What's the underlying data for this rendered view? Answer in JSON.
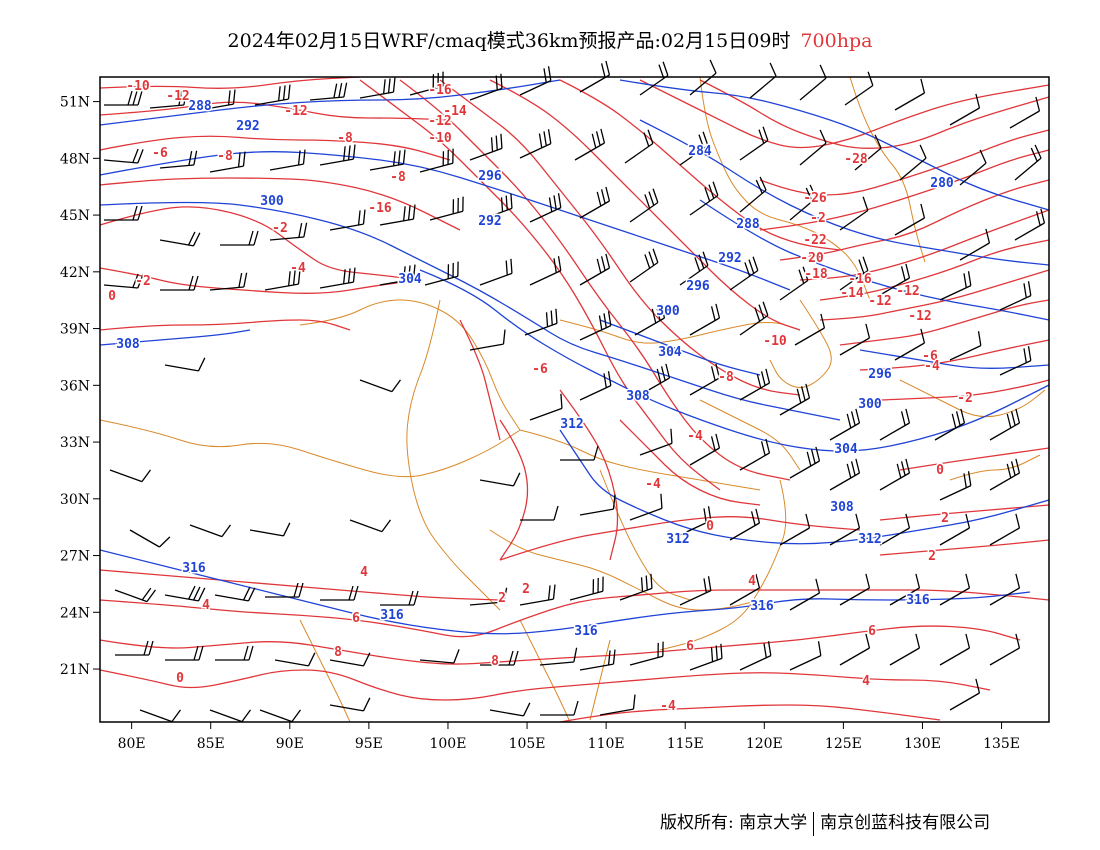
{
  "title": {
    "text": "2024年02月15日WRF/cmaq模式36km预报产品:02月15日09时",
    "level": "700hpa"
  },
  "colors": {
    "temperature": "#e0363a",
    "geopotential": "#1f43d6",
    "coast_border": "#d98a2b",
    "wind_barb": "#000000",
    "title_level": "#e0363a"
  },
  "map": {
    "lon_range": [
      78,
      138
    ],
    "lat_range": [
      18.2,
      52.3
    ],
    "lon_ticks": [
      "80E",
      "85E",
      "90E",
      "95E",
      "100E",
      "105E",
      "110E",
      "115E",
      "120E",
      "125E",
      "130E",
      "135E"
    ],
    "lat_ticks": [
      "51N",
      "48N",
      "45N",
      "42N",
      "39N",
      "36N",
      "33N",
      "30N",
      "27N",
      "24N",
      "21N"
    ]
  },
  "geopotential_labels": [
    "288",
    "292",
    "300",
    "296",
    "292",
    "308",
    "304",
    "312",
    "316",
    "316",
    "316",
    "312",
    "308",
    "304",
    "300",
    "296",
    "280",
    "284",
    "288",
    "292",
    "296",
    "300",
    "304",
    "308",
    "312",
    "316",
    "316"
  ],
  "temperature_labels": [
    "-10",
    "-12",
    "-12",
    "-16",
    "-14",
    "-12",
    "-10",
    "-8",
    "-8",
    "-6",
    "-8",
    "-16",
    "-2",
    "-4",
    "-2",
    "0",
    "-28",
    "-26",
    "-2",
    "-22",
    "-20",
    "-18",
    "-16",
    "-14",
    "-12",
    "-12",
    "-12",
    "-10",
    "-8",
    "-6",
    "-4",
    "-4",
    "-6",
    "-4",
    "-2",
    "0",
    "2",
    "2",
    "2",
    "4",
    "4",
    "4",
    "6",
    "6",
    "6",
    "8",
    "8",
    "0",
    "4",
    "-4",
    "2",
    "0"
  ],
  "copyright": {
    "left": "版权所有: 南京大学",
    "right": "南京创蓝科技有限公司"
  }
}
